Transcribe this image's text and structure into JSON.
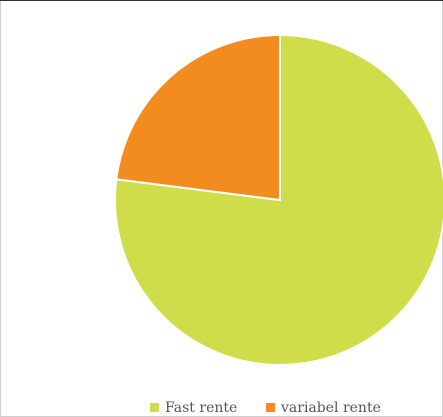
{
  "chart_data": {
    "type": "pie",
    "categories": [
      "Fast rente",
      "variabel rente"
    ],
    "values": [
      77,
      23
    ],
    "colors": [
      "#cfdd4a",
      "#f28c1e"
    ],
    "legend": "bottom"
  }
}
